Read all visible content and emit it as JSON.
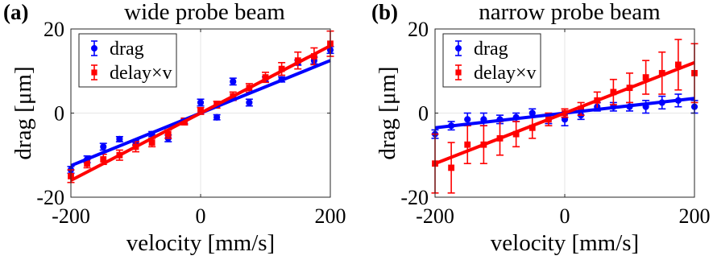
{
  "chart_data": [
    {
      "type": "scatter",
      "panel_label": "(a)",
      "title": "wide probe beam",
      "xlabel": "velocity [mm/s]",
      "ylabel": "drag [μm]",
      "xlim": [
        -200,
        200
      ],
      "ylim": [
        -20,
        20
      ],
      "xticks": [
        -200,
        0,
        200
      ],
      "xtick_labels": [
        "-200",
        "0",
        "200"
      ],
      "yticks": [
        -20,
        0,
        20
      ],
      "ytick_labels": [
        "-20",
        "0",
        "20"
      ],
      "grid": true,
      "legend_position": "top-left",
      "series": [
        {
          "name": "drag",
          "color": "#0000ff",
          "marker": "circle",
          "x": [
            -200,
            -175,
            -150,
            -125,
            -100,
            -75,
            -50,
            -25,
            0,
            25,
            50,
            75,
            100,
            125,
            150,
            175,
            200
          ],
          "y": [
            -13.5,
            -11.0,
            -8.0,
            -6.2,
            -7.0,
            -5.0,
            -6.0,
            -2.0,
            2.5,
            -1.0,
            7.5,
            2.5,
            8.0,
            8.0,
            12.0,
            12.5,
            15.0
          ],
          "err": [
            0.8,
            0.8,
            0.8,
            0.6,
            0.6,
            0.6,
            0.8,
            0.5,
            0.8,
            0.6,
            0.8,
            0.8,
            0.6,
            0.6,
            0.6,
            0.8,
            0.8
          ],
          "fit": [
            [
              -200,
              -12.5
            ],
            [
              200,
              12.5
            ]
          ]
        },
        {
          "name": "delay×v",
          "color": "#ff0000",
          "marker": "square",
          "x": [
            -200,
            -175,
            -150,
            -125,
            -100,
            -75,
            -50,
            -25,
            0,
            25,
            50,
            75,
            100,
            125,
            150,
            175,
            200
          ],
          "y": [
            -15.0,
            -12.0,
            -11.0,
            -10.0,
            -8.0,
            -7.0,
            -5.0,
            -2.0,
            0.5,
            2.0,
            4.0,
            6.0,
            8.5,
            10.5,
            12.5,
            13.5,
            16.5
          ],
          "err": [
            1.5,
            1.0,
            1.2,
            1.2,
            1.2,
            1.0,
            1.0,
            0.8,
            0.8,
            0.8,
            1.0,
            1.0,
            1.2,
            1.5,
            2.0,
            2.0,
            3.0
          ],
          "fit": [
            [
              -200,
              -16.0
            ],
            [
              200,
              16.0
            ]
          ]
        }
      ]
    },
    {
      "type": "scatter",
      "panel_label": "(b)",
      "title": "narrow probe beam",
      "xlabel": "velocity [mm/s]",
      "ylabel": "drag [μm]",
      "xlim": [
        -200,
        200
      ],
      "ylim": [
        -20,
        20
      ],
      "xticks": [
        -200,
        0,
        200
      ],
      "xtick_labels": [
        "-200",
        "0",
        "200"
      ],
      "yticks": [
        -20,
        0,
        20
      ],
      "ytick_labels": [
        "-20",
        "0",
        "20"
      ],
      "grid": true,
      "legend_position": "top-left",
      "series": [
        {
          "name": "drag",
          "color": "#0000ff",
          "marker": "circle",
          "x": [
            -200,
            -175,
            -150,
            -125,
            -100,
            -75,
            -50,
            -25,
            0,
            25,
            50,
            75,
            100,
            125,
            150,
            175,
            200
          ],
          "y": [
            -5.0,
            -3.0,
            -1.5,
            -1.5,
            -1.5,
            -1.0,
            0.0,
            -1.5,
            -1.5,
            -0.5,
            1.5,
            1.5,
            1.5,
            1.5,
            2.5,
            3.0,
            1.5
          ],
          "err": [
            1.0,
            1.0,
            1.5,
            1.5,
            1.0,
            1.0,
            1.0,
            1.0,
            1.5,
            1.0,
            1.0,
            1.0,
            1.0,
            1.5,
            1.5,
            1.5,
            1.5
          ],
          "fit": [
            [
              -200,
              -3.5
            ],
            [
              200,
              3.5
            ]
          ]
        },
        {
          "name": "delay×v",
          "color": "#ff0000",
          "marker": "square",
          "x": [
            -200,
            -175,
            -150,
            -125,
            -100,
            -75,
            -50,
            -25,
            0,
            25,
            50,
            75,
            100,
            125,
            150,
            175,
            200
          ],
          "y": [
            -12.0,
            -13.0,
            -7.5,
            -7.5,
            -6.0,
            -5.0,
            -3.5,
            -1.5,
            0.0,
            1.0,
            3.0,
            5.0,
            6.0,
            8.5,
            9.5,
            11.5,
            9.5
          ],
          "err": [
            7.0,
            6.0,
            4.5,
            4.5,
            4.0,
            3.0,
            2.5,
            1.5,
            1.0,
            1.5,
            2.0,
            3.0,
            3.5,
            4.0,
            5.0,
            6.0,
            7.0
          ],
          "fit": [
            [
              -200,
              -12.0
            ],
            [
              200,
              12.0
            ]
          ]
        }
      ]
    }
  ]
}
